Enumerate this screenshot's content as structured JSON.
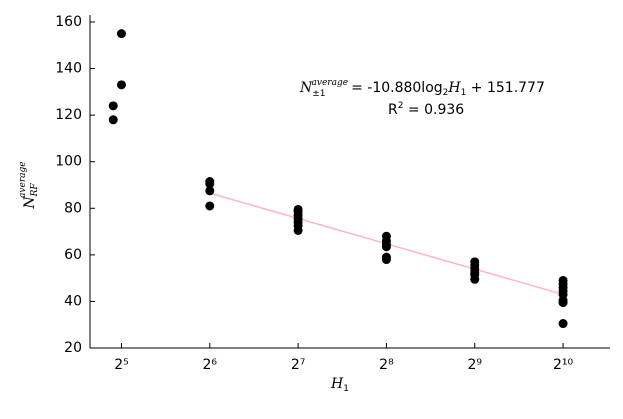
{
  "chart_data": {
    "type": "scatter",
    "x_scale": "log2",
    "xlim": [
      25,
      1480
    ],
    "ylim": [
      20,
      163
    ],
    "xticks": [
      {
        "value": 32,
        "label": "2⁵"
      },
      {
        "value": 64,
        "label": "2⁶"
      },
      {
        "value": 128,
        "label": "2⁷"
      },
      {
        "value": 256,
        "label": "2⁸"
      },
      {
        "value": 512,
        "label": "2⁹"
      },
      {
        "value": 1024,
        "label": "2¹⁰"
      }
    ],
    "yticks": [
      20,
      40,
      60,
      80,
      100,
      120,
      140,
      160
    ],
    "x_label": {
      "base": "H",
      "sub": "1"
    },
    "y_label": {
      "base": "N",
      "sub": "RF",
      "sup": "average"
    },
    "series": [
      {
        "color": "#000000",
        "x": [
          30,
          30,
          32,
          32,
          64,
          64,
          64,
          64,
          128,
          128,
          128,
          128,
          128,
          128,
          128,
          256,
          256,
          256,
          256,
          256,
          256,
          512,
          512,
          512,
          512,
          512,
          512,
          1024,
          1024,
          1024,
          1024,
          1024,
          1024,
          1024,
          1024
        ],
        "values": [
          124,
          118,
          155,
          133,
          91.5,
          90.5,
          87.5,
          81,
          79.5,
          78.5,
          77,
          75.5,
          74,
          72.5,
          70.5,
          68,
          66,
          64.5,
          63.5,
          59,
          58,
          57,
          55.5,
          54,
          52.5,
          51.5,
          49.5,
          49,
          47.5,
          46,
          44.5,
          43,
          40.5,
          39.5,
          30.5
        ]
      }
    ],
    "fit_line": {
      "color": "#ffb6c1",
      "x": [
        64,
        1024
      ],
      "values": [
        86.5,
        43.0
      ]
    },
    "annotation": {
      "lhs": "N",
      "lhs_sub": "±1",
      "lhs_sup": "average",
      "eq": "= ",
      "coef": "-10.880log",
      "log_base": "2",
      "var": "H",
      "var_sub": "1",
      "tail": " + 151.777",
      "r": "R",
      "r_sup": "2",
      "r_eq": " = 0.936"
    }
  }
}
